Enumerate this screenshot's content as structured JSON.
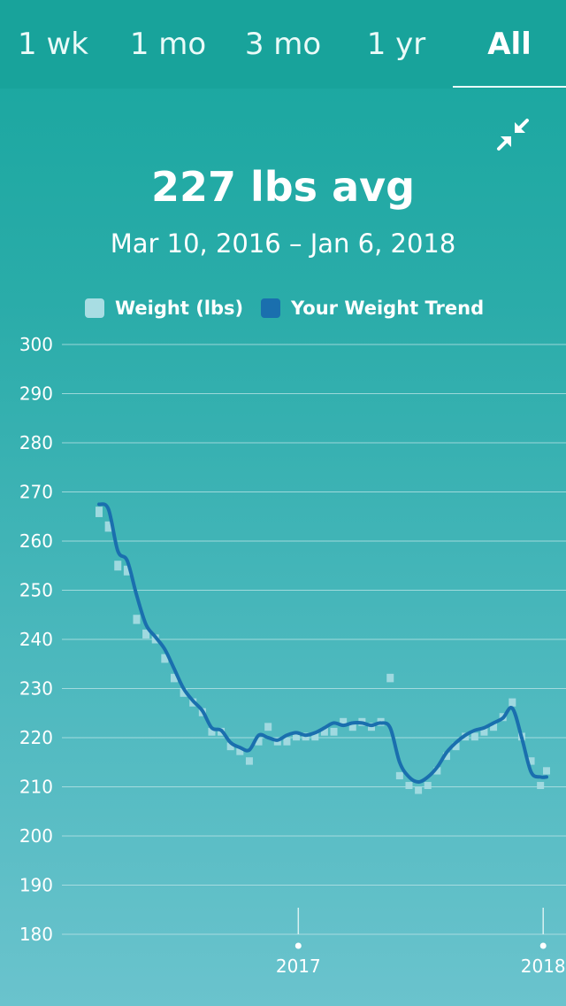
{
  "tabs": [
    {
      "label": "1 wk",
      "active": false
    },
    {
      "label": "1 mo",
      "active": false
    },
    {
      "label": "3 mo",
      "active": false
    },
    {
      "label": "1 yr",
      "active": false
    },
    {
      "label": "All",
      "active": true
    }
  ],
  "summary": {
    "average": "227 lbs avg",
    "date_range": "Mar 10, 2016 – Jan 6, 2018"
  },
  "colors": {
    "weight_bar": "#a8dde3",
    "trend_line": "#1a6fae",
    "gridline": "#bfe6e8"
  },
  "icons": {
    "collapse": "collapse-arrows-icon"
  },
  "chart_data": {
    "type": "line",
    "title": "",
    "xlabel": "",
    "ylabel": "",
    "ylim": [
      180,
      300
    ],
    "yticks": [
      300,
      290,
      280,
      270,
      260,
      250,
      240,
      230,
      220,
      210,
      200,
      190,
      180
    ],
    "xlim": [
      "2016-03-10",
      "2018-01-06"
    ],
    "xticks": [
      {
        "label": "2017",
        "date": "2017-01-01"
      },
      {
        "label": "2018",
        "date": "2018-01-01"
      }
    ],
    "grid": true,
    "legend": "top-center",
    "series": [
      {
        "name": "Weight (lbs)",
        "style": "bars",
        "x": [
          "2016-03-10",
          "2016-03-24",
          "2016-04-07",
          "2016-04-21",
          "2016-05-05",
          "2016-05-19",
          "2016-06-02",
          "2016-06-16",
          "2016-06-30",
          "2016-07-14",
          "2016-07-28",
          "2016-08-11",
          "2016-08-25",
          "2016-09-08",
          "2016-09-22",
          "2016-10-06",
          "2016-10-20",
          "2016-11-03",
          "2016-11-17",
          "2016-12-01",
          "2016-12-15",
          "2016-12-29",
          "2017-01-12",
          "2017-01-26",
          "2017-02-09",
          "2017-02-23",
          "2017-03-09",
          "2017-03-23",
          "2017-04-06",
          "2017-04-20",
          "2017-05-04",
          "2017-05-18",
          "2017-06-01",
          "2017-06-15",
          "2017-06-29",
          "2017-07-13",
          "2017-07-27",
          "2017-08-10",
          "2017-08-24",
          "2017-09-07",
          "2017-09-21",
          "2017-10-05",
          "2017-10-19",
          "2017-11-02",
          "2017-11-16",
          "2017-11-30",
          "2017-12-14",
          "2017-12-28",
          "2018-01-06"
        ],
        "values": [
          267,
          264,
          256,
          255,
          245,
          242,
          241,
          237,
          233,
          230,
          228,
          226,
          222,
          222,
          219,
          218,
          216,
          220,
          223,
          220,
          220,
          221,
          221,
          221,
          222,
          222,
          224,
          223,
          224,
          223,
          224,
          233,
          213,
          211,
          210,
          211,
          214,
          217,
          219,
          221,
          221,
          222,
          223,
          225,
          228,
          221,
          216,
          211,
          214
        ]
      },
      {
        "name": "Your Weight Trend",
        "style": "line",
        "x": [
          "2016-03-10",
          "2016-03-24",
          "2016-04-07",
          "2016-04-21",
          "2016-05-05",
          "2016-05-19",
          "2016-06-02",
          "2016-06-16",
          "2016-06-30",
          "2016-07-14",
          "2016-07-28",
          "2016-08-11",
          "2016-08-25",
          "2016-09-08",
          "2016-09-22",
          "2016-10-06",
          "2016-10-20",
          "2016-11-03",
          "2016-11-17",
          "2016-12-01",
          "2016-12-15",
          "2016-12-29",
          "2017-01-12",
          "2017-01-26",
          "2017-02-09",
          "2017-02-23",
          "2017-03-09",
          "2017-03-23",
          "2017-04-06",
          "2017-04-20",
          "2017-05-04",
          "2017-05-18",
          "2017-06-01",
          "2017-06-15",
          "2017-06-29",
          "2017-07-13",
          "2017-07-27",
          "2017-08-10",
          "2017-08-24",
          "2017-09-07",
          "2017-09-21",
          "2017-10-05",
          "2017-10-19",
          "2017-11-02",
          "2017-11-16",
          "2017-11-30",
          "2017-12-14",
          "2017-12-28",
          "2018-01-06"
        ],
        "values": [
          267.5,
          266.5,
          258,
          256,
          249,
          243,
          240.5,
          238,
          234,
          230,
          227.5,
          225.5,
          222,
          221.5,
          219,
          218,
          217.5,
          220.5,
          220,
          219.5,
          220.5,
          221,
          220.5,
          221,
          222,
          223,
          222.5,
          223,
          223,
          222.5,
          223,
          222,
          215,
          212,
          211,
          212,
          214,
          217,
          219,
          220.5,
          221.5,
          222,
          223,
          224,
          226,
          220,
          213,
          212,
          212
        ]
      }
    ]
  }
}
